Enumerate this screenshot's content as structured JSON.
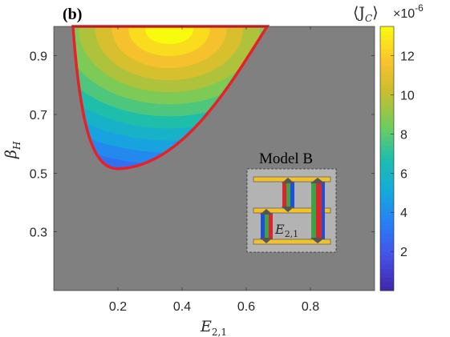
{
  "chart_data": {
    "type": "heatmap",
    "panel_label": "(b)",
    "xlabel": "E",
    "xlabel_sub": "2,1",
    "ylabel": "β",
    "ylabel_sub": "H",
    "xlim": [
      0,
      1
    ],
    "ylim": [
      0.1,
      1.0
    ],
    "x_ticks": [
      0.2,
      0.4,
      0.6,
      0.8
    ],
    "x_tick_labels": [
      "0.2",
      "0.4",
      "0.6",
      "0.8"
    ],
    "y_ticks": [
      0.3,
      0.5,
      0.7,
      0.9
    ],
    "y_tick_labels": [
      "0.3",
      "0.5",
      "0.7",
      "0.9"
    ],
    "background_color": "#808080",
    "boundary_color": "#e8202a",
    "colorbar": {
      "label": "⟨J",
      "label_sub": "C",
      "label_close": "⟩",
      "multiplier": "×10",
      "exponent": "-6",
      "min": 0,
      "max": 13.5,
      "ticks": [
        2,
        4,
        6,
        8,
        10,
        12
      ],
      "tick_labels": [
        "2",
        "4",
        "6",
        "8",
        "10",
        "12"
      ],
      "colormap": "parula"
    },
    "region": {
      "description_points": [
        {
          "x": 0.06,
          "y": 1.0
        },
        {
          "x": 0.665,
          "y": 1.0
        },
        {
          "x": 0.2,
          "y": 0.515
        }
      ],
      "peak_value": 13.5,
      "levels": 15
    },
    "inset": {
      "title": "Model B",
      "label": "E",
      "label_sub": "2,1"
    }
  }
}
